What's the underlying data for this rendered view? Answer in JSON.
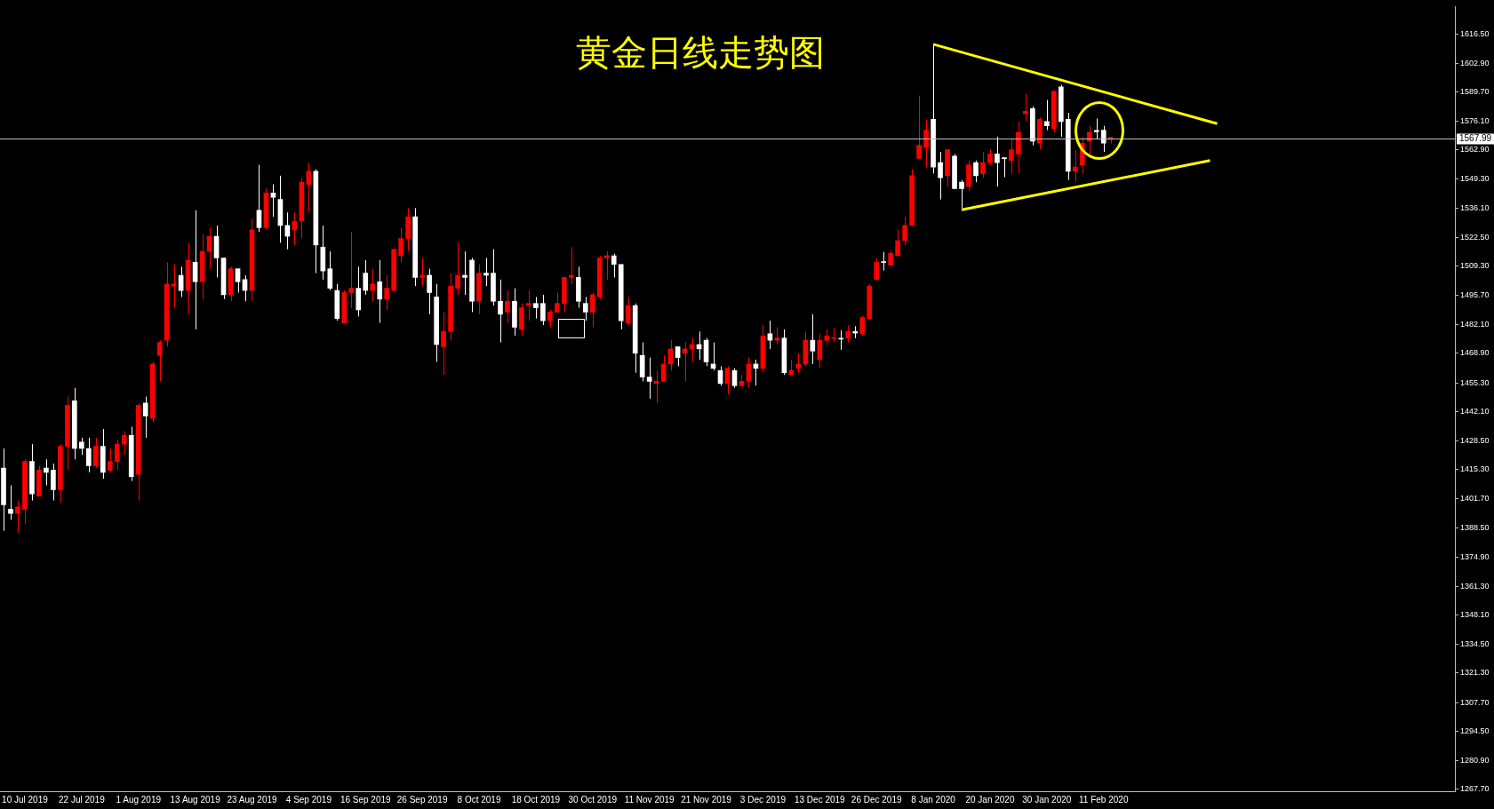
{
  "chart_data": {
    "type": "candlestick",
    "title": "黄金日线走势图",
    "categories": [
      null,
      null,
      null,
      "10 Jul 2019",
      null,
      null,
      null,
      null,
      null,
      null,
      null,
      "22 Jul 2019",
      null,
      null,
      null,
      null,
      null,
      null,
      null,
      "1 Aug 2019",
      null,
      null,
      null,
      null,
      null,
      null,
      null,
      "13 Aug 2019",
      null,
      null,
      null,
      null,
      null,
      null,
      null,
      "23 Aug 2019",
      null,
      null,
      null,
      null,
      null,
      null,
      null,
      "4 Sep 2019",
      null,
      null,
      null,
      null,
      null,
      null,
      null,
      "16 Sep 2019",
      null,
      null,
      null,
      null,
      null,
      null,
      null,
      "26 Sep 2019",
      null,
      null,
      null,
      null,
      null,
      null,
      null,
      "8 Oct 2019",
      null,
      null,
      null,
      null,
      null,
      null,
      null,
      "18 Oct 2019",
      null,
      null,
      null,
      null,
      null,
      null,
      null,
      "30 Oct 2019",
      null,
      null,
      null,
      null,
      null,
      null,
      null,
      "11 Nov 2019",
      null,
      null,
      null,
      null,
      null,
      null,
      null,
      "21 Nov 2019",
      null,
      null,
      null,
      null,
      null,
      null,
      null,
      "3 Dec 2019",
      null,
      null,
      null,
      null,
      null,
      null,
      null,
      "13 Dec 2019",
      null,
      null,
      null,
      null,
      null,
      null,
      null,
      "26 Dec 2019",
      null,
      null,
      null,
      null,
      null,
      null,
      null,
      "8 Jan 2020",
      null,
      null,
      null,
      null,
      null,
      null,
      null,
      "20 Jan 2020",
      null,
      null,
      null,
      null,
      null,
      null,
      null,
      "30 Jan 2020",
      null,
      null,
      null,
      null,
      null,
      null,
      null,
      "11 Feb 2020",
      null,
      null,
      null,
      null,
      null,
      null,
      null,
      null,
      null,
      null,
      null,
      null,
      null,
      null,
      null,
      null,
      null,
      null,
      null,
      null,
      null,
      null,
      null,
      null,
      null,
      null,
      null,
      null,
      null,
      null,
      null,
      null,
      null,
      null,
      null,
      null,
      null,
      null,
      null,
      null,
      null,
      null,
      null,
      null,
      null,
      null,
      null,
      null,
      null
    ],
    "ohlc": [
      [
        1416,
        1425,
        1387,
        1399
      ],
      [
        1397,
        1408,
        1392,
        1395
      ],
      [
        1395,
        1401,
        1386,
        1398
      ],
      [
        1397,
        1420,
        1390,
        1419
      ],
      [
        1419,
        1427,
        1401,
        1404
      ],
      [
        1403,
        1417,
        1403,
        1415
      ],
      [
        1416,
        1420,
        1408,
        1414
      ],
      [
        1415,
        1418,
        1401,
        1406
      ],
      [
        1406,
        1427,
        1400,
        1426
      ],
      [
        1426,
        1449,
        1415,
        1445
      ],
      [
        1447,
        1453,
        1420,
        1425
      ],
      [
        1428,
        1430,
        1422,
        1425
      ],
      [
        1425,
        1430,
        1414,
        1417
      ],
      [
        1417,
        1430,
        1416,
        1426
      ],
      [
        1426,
        1434,
        1411,
        1414
      ],
      [
        1415,
        1425,
        1414,
        1419
      ],
      [
        1419,
        1429,
        1415,
        1427
      ],
      [
        1427,
        1433,
        1422,
        1431
      ],
      [
        1431,
        1435,
        1410,
        1412
      ],
      [
        1413,
        1446,
        1401,
        1445
      ],
      [
        1446,
        1449,
        1430,
        1440
      ],
      [
        1439,
        1465,
        1437,
        1464
      ],
      [
        1468,
        1475,
        1456,
        1474
      ],
      [
        1475,
        1511,
        1472,
        1501
      ],
      [
        1500,
        1510,
        1490,
        1501
      ],
      [
        1505,
        1509,
        1495,
        1498
      ],
      [
        1498,
        1520,
        1487,
        1512
      ],
      [
        1511,
        1535,
        1480,
        1502
      ],
      [
        1502,
        1524,
        1494,
        1516
      ],
      [
        1516,
        1527,
        1508,
        1523
      ],
      [
        1523,
        1528,
        1504,
        1513
      ],
      [
        1513,
        1513,
        1494,
        1496
      ],
      [
        1496,
        1509,
        1493,
        1508
      ],
      [
        1508,
        1508,
        1497,
        1502
      ],
      [
        1503,
        1505,
        1493,
        1498
      ],
      [
        1498,
        1531,
        1493,
        1526
      ],
      [
        1535,
        1556,
        1525,
        1527
      ],
      [
        1527,
        1545,
        1526,
        1543
      ],
      [
        1543,
        1547,
        1532,
        1541
      ],
      [
        1540,
        1551,
        1520,
        1528
      ],
      [
        1528,
        1534,
        1517,
        1523
      ],
      [
        1526,
        1534,
        1519,
        1530
      ],
      [
        1530,
        1550,
        1522,
        1548
      ],
      [
        1547,
        1557,
        1534,
        1553
      ],
      [
        1553,
        1554,
        1506,
        1519
      ],
      [
        1518,
        1528,
        1503,
        1507
      ],
      [
        1508,
        1516,
        1498,
        1499
      ],
      [
        1498,
        1501,
        1484,
        1485
      ],
      [
        1483,
        1498,
        1483,
        1497
      ],
      [
        1497,
        1525,
        1490,
        1499
      ],
      [
        1499,
        1509,
        1486,
        1489
      ],
      [
        1506,
        1512,
        1496,
        1498
      ],
      [
        1498,
        1508,
        1493,
        1501
      ],
      [
        1502,
        1512,
        1483,
        1494
      ],
      [
        1494,
        1505,
        1489,
        1499
      ],
      [
        1498,
        1517,
        1498,
        1517
      ],
      [
        1514,
        1527,
        1511,
        1522
      ],
      [
        1522,
        1536,
        1516,
        1532
      ],
      [
        1532,
        1536,
        1500,
        1504
      ],
      [
        1504,
        1513,
        1500,
        1505
      ],
      [
        1505,
        1508,
        1487,
        1497
      ],
      [
        1495,
        1501,
        1465,
        1473
      ],
      [
        1472,
        1488,
        1459,
        1479
      ],
      [
        1479,
        1506,
        1475,
        1500
      ],
      [
        1499,
        1520,
        1496,
        1505
      ],
      [
        1505,
        1516,
        1496,
        1504
      ],
      [
        1512,
        1513,
        1488,
        1493
      ],
      [
        1493,
        1510,
        1487,
        1506
      ],
      [
        1506,
        1513,
        1500,
        1505
      ],
      [
        1506,
        1517,
        1491,
        1493
      ],
      [
        1493,
        1503,
        1474,
        1487
      ],
      [
        1488,
        1498,
        1483,
        1493
      ],
      [
        1493,
        1499,
        1477,
        1481
      ],
      [
        1480,
        1492,
        1477,
        1490
      ],
      [
        1491,
        1498,
        1484,
        1492
      ],
      [
        1492,
        1495,
        1485,
        1490
      ],
      [
        1492,
        1496,
        1482,
        1484
      ],
      [
        1484,
        1489,
        1481,
        1488
      ],
      [
        1488,
        1497,
        1488,
        1492
      ],
      [
        1492,
        1504,
        1488,
        1504
      ],
      [
        1504,
        1518,
        1501,
        1505
      ],
      [
        1504,
        1509,
        1490,
        1493
      ],
      [
        1492,
        1495,
        1484,
        1488
      ],
      [
        1488,
        1497,
        1481,
        1496
      ],
      [
        1495,
        1514,
        1494,
        1513
      ],
      [
        1513,
        1516,
        1503,
        1514
      ],
      [
        1514,
        1515,
        1504,
        1510
      ],
      [
        1510,
        1510,
        1480,
        1484
      ],
      [
        1483,
        1495,
        1482,
        1491
      ],
      [
        1491,
        1492,
        1460,
        1469
      ],
      [
        1468,
        1474,
        1456,
        1458
      ],
      [
        1458,
        1467,
        1448,
        1456
      ],
      [
        1455,
        1461,
        1446,
        1456
      ],
      [
        1456,
        1468,
        1456,
        1464
      ],
      [
        1464,
        1475,
        1461,
        1471
      ],
      [
        1472,
        1472,
        1463,
        1467
      ],
      [
        1469,
        1474,
        1456,
        1471
      ],
      [
        1471,
        1476,
        1465,
        1473
      ],
      [
        1473,
        1479,
        1466,
        1471
      ],
      [
        1475,
        1476,
        1463,
        1465
      ],
      [
        1464,
        1474,
        1461,
        1462
      ],
      [
        1461,
        1463,
        1454,
        1455
      ],
      [
        1455,
        1463,
        1450,
        1462
      ],
      [
        1461,
        1462,
        1453,
        1454
      ],
      [
        1454,
        1459,
        1454,
        1456
      ],
      [
        1456,
        1467,
        1453,
        1464
      ],
      [
        1464,
        1466,
        1454,
        1462
      ],
      [
        1462,
        1482,
        1460,
        1477
      ],
      [
        1478,
        1484,
        1471,
        1475
      ],
      [
        1475,
        1481,
        1473,
        1476
      ],
      [
        1476,
        1480,
        1459,
        1460
      ],
      [
        1459,
        1466,
        1459,
        1461
      ],
      [
        1462,
        1469,
        1460,
        1464
      ],
      [
        1464,
        1479,
        1463,
        1475
      ],
      [
        1475,
        1487,
        1464,
        1470
      ],
      [
        1466,
        1478,
        1462,
        1475
      ],
      [
        1475,
        1480,
        1473,
        1477
      ],
      [
        1475.8,
        1480.6,
        1474.3,
        1476.2
      ],
      [
        1475.8,
        1479.6,
        1470.6,
        1475.5
      ],
      [
        1476,
        1482,
        1474,
        1479
      ],
      [
        1479,
        1481.5,
        1475.9,
        1478.3
      ],
      [
        1478,
        1486.3,
        1477,
        1485.5
      ],
      [
        1485,
        1501,
        1484,
        1500
      ],
      [
        1503.1,
        1512.9,
        1502.7,
        1511.1
      ],
      [
        1511.1,
        1515.8,
        1507.2,
        1510.9
      ],
      [
        1509.7,
        1516.4,
        1509.7,
        1515.2
      ],
      [
        1514,
        1526,
        1514,
        1521
      ],
      [
        1521,
        1532,
        1519,
        1528
      ],
      [
        1528,
        1554,
        1528,
        1551
      ],
      [
        1559,
        1588,
        1559,
        1565
      ],
      [
        1564,
        1577,
        1555,
        1572
      ],
      [
        1577,
        1612,
        1552,
        1555
      ],
      [
        1557,
        1562,
        1540,
        1550
      ],
      [
        1551,
        1563,
        1546,
        1563
      ],
      [
        1560,
        1561,
        1545,
        1545
      ],
      [
        1548,
        1549,
        1536,
        1545
      ],
      [
        1546,
        1558,
        1544,
        1556
      ],
      [
        1557,
        1558,
        1548,
        1551
      ],
      [
        1552,
        1562,
        1550,
        1557
      ],
      [
        1557,
        1563,
        1556,
        1561
      ],
      [
        1561,
        1569,
        1546,
        1557
      ],
      [
        1559.1,
        1559.5,
        1550.3,
        1558.9
      ],
      [
        1558,
        1568,
        1552,
        1563
      ],
      [
        1561,
        1576,
        1552,
        1571
      ],
      [
        1579.6,
        1588.8,
        1575.9,
        1580.7
      ],
      [
        1582,
        1583,
        1565,
        1567
      ],
      [
        1566,
        1578,
        1563,
        1577
      ],
      [
        1576,
        1586,
        1572,
        1574
      ],
      [
        1572.7,
        1590.4,
        1571,
        1590
      ],
      [
        1592,
        1593,
        1569,
        1576
      ],
      [
        1577,
        1580,
        1549,
        1553
      ],
      [
        1553,
        1563,
        1548,
        1555
      ],
      [
        1556,
        1569,
        1552,
        1566
      ],
      [
        1567,
        1574,
        1560,
        1571
      ],
      [
        1571.9,
        1577.4,
        1567.8,
        1571.3
      ],
      [
        1572,
        1574,
        1562,
        1566
      ],
      [
        1567.8,
        1568.9,
        1565.8,
        1568.6
      ],
      null,
      null,
      null,
      null,
      null,
      null,
      null,
      null,
      null,
      null,
      null,
      null,
      null,
      null,
      null,
      null,
      null,
      null,
      null,
      null,
      null,
      null,
      null,
      null,
      null,
      null,
      null,
      null,
      null,
      null,
      null,
      null,
      null,
      null,
      null,
      null,
      null,
      null,
      null,
      null,
      null,
      null,
      null,
      null,
      null,
      null,
      null,
      null
    ],
    "colors": [
      "#ffffff",
      "#ffffff",
      "#ff0000",
      "#ff0000",
      "#ffffff",
      "#ff0000",
      "#ffffff",
      "#ffffff",
      "#ff0000",
      "#ff0000",
      "#ffffff",
      "#ffffff",
      "#ffffff",
      "#ff0000",
      "#ffffff",
      "#ff0000",
      "#ff0000",
      "#ff0000",
      "#ffffff",
      "#ff0000",
      "#ffffff",
      "#ff0000",
      "#ff0000",
      "#ff0000",
      "#ff0000",
      "#ffffff",
      "#ff0000",
      "#ffffff",
      "#ff0000",
      "#ff0000",
      "#ffffff",
      "#ffffff",
      "#ff0000",
      "#ffffff",
      "#ffffff",
      "#ff0000",
      "#ffffff",
      "#ff0000",
      "#ffffff",
      "#ffffff",
      "#ffffff",
      "#ff0000",
      "#ff0000",
      "#ff0000",
      "#ffffff",
      "#ffffff",
      "#ffffff",
      "#ffffff",
      "#ff0000",
      "#ff0000",
      "#ffffff",
      "#ffffff",
      "#ff0000",
      "#ffffff",
      "#ff0000",
      "#ff0000",
      "#ff0000",
      "#ff0000",
      "#ffffff",
      "#ff0000",
      "#ffffff",
      "#ffffff",
      "#ff0000",
      "#ff0000",
      "#ff0000",
      "#ffffff",
      "#ffffff",
      "#ff0000",
      "#ffffff",
      "#ffffff",
      "#ffffff",
      "#ff0000",
      "#ffffff",
      "#ff0000",
      "#ff0000",
      "#ffffff",
      "#ffffff",
      "#ff0000",
      "#ff0000",
      "#ff0000",
      "#ff0000",
      "#ffffff",
      "#ffffff",
      "#ff0000",
      "#ff0000",
      "#ff0000",
      "#ffffff",
      "#ffffff",
      "#ff0000",
      "#ffffff",
      "#ffffff",
      "#ffffff",
      "#ff0000",
      "#ff0000",
      "#ff0000",
      "#ffffff",
      "#ff0000",
      "#ff0000",
      "#ffffff",
      "#ffffff",
      "#ffffff",
      "#ffffff",
      "#ff0000",
      "#ffffff",
      "#ff0000",
      "#ff0000",
      "#ffffff",
      "#ff0000",
      "#ffffff",
      "#ff0000",
      "#ffffff",
      "#ff0000",
      "#ff0000",
      "#ff0000",
      "#ffffff",
      "#ff0000",
      "#ff0000",
      "#ff0000",
      "#ffffff",
      "#ff0000",
      "#ffffff",
      "#ff0000",
      "#ff0000",
      "#ff0000",
      "#ffffff",
      "#ff0000",
      "#ff0000",
      "#ff0000",
      "#ff0000",
      "#ff0000",
      "#ff0000",
      "#ffffff",
      "#ffffff",
      "#ff0000",
      "#ffffff",
      "#ffffff",
      "#ff0000",
      "#ffffff",
      "#ff0000",
      "#ff0000",
      "#ffffff",
      "#ffffff",
      "#ff0000",
      "#ff0000",
      "#ff0000",
      "#ffffff",
      "#ff0000",
      "#ffffff",
      "#ff0000",
      "#ffffff",
      "#ffffff",
      "#ff0000",
      "#ff0000",
      "#ff0000",
      "#ffffff",
      "#ffffff",
      "#ff0000",
      null,
      null,
      null,
      null,
      null,
      null,
      null,
      null,
      null,
      null,
      null,
      null,
      null,
      null,
      null,
      null,
      null,
      null,
      null,
      null,
      null,
      null,
      null,
      null,
      null,
      null,
      null,
      null,
      null,
      null,
      null,
      null,
      null,
      null,
      null,
      null,
      null,
      null,
      null,
      null,
      null,
      null,
      null,
      null,
      null,
      null,
      null,
      null
    ],
    "series": [
      {
        "type": "line",
        "color": "#ffff00",
        "values": [
          null,
          null,
          null,
          null,
          null,
          null,
          null,
          null,
          null,
          null,
          null,
          null,
          null,
          null,
          null,
          null,
          null,
          null,
          null,
          null,
          null,
          null,
          null,
          null,
          null,
          null,
          null,
          null,
          null,
          null,
          null,
          null,
          null,
          null,
          null,
          null,
          null,
          null,
          null,
          null,
          null,
          null,
          null,
          null,
          null,
          null,
          null,
          null,
          null,
          null,
          null,
          null,
          null,
          null,
          null,
          null,
          null,
          null,
          null,
          null,
          null,
          null,
          null,
          null,
          null,
          null,
          null,
          null,
          null,
          null,
          null,
          null,
          null,
          null,
          null,
          null,
          null,
          null,
          null,
          null,
          null,
          null,
          null,
          null,
          null,
          null,
          null,
          null,
          null,
          null,
          null,
          null,
          null,
          null,
          null,
          null,
          null,
          null,
          null,
          null,
          null,
          null,
          null,
          null,
          null,
          null,
          null,
          null,
          null,
          null,
          null,
          null,
          null,
          null,
          null,
          null,
          null,
          null,
          null,
          null,
          null,
          null,
          null,
          null,
          null,
          null,
          null,
          null,
          null,
          null,
          null,
          1611.7,
          null,
          null,
          null,
          null,
          null,
          null,
          null,
          null,
          null,
          null,
          null,
          null,
          null,
          null,
          null,
          null,
          null,
          null,
          null,
          null,
          null,
          null,
          null,
          null,
          null,
          null,
          null,
          null,
          null,
          null,
          null,
          null,
          null,
          null,
          null,
          null,
          null,
          null,
          null,
          1575,
          null,
          null,
          null,
          null,
          null,
          null,
          null,
          null,
          null,
          null,
          null,
          null,
          null,
          null,
          null,
          null,
          null,
          null,
          null,
          null,
          null,
          null,
          null,
          null,
          null,
          null,
          null,
          null,
          null,
          null,
          null,
          null,
          null
        ]
      },
      {
        "type": "line",
        "color": "#ffff00",
        "values": [
          null,
          null,
          null,
          null,
          null,
          null,
          null,
          null,
          null,
          null,
          null,
          null,
          null,
          null,
          null,
          null,
          null,
          null,
          null,
          null,
          null,
          null,
          null,
          null,
          null,
          null,
          null,
          null,
          null,
          null,
          null,
          null,
          null,
          null,
          null,
          null,
          null,
          null,
          null,
          null,
          null,
          null,
          null,
          null,
          null,
          null,
          null,
          null,
          null,
          null,
          null,
          null,
          null,
          null,
          null,
          null,
          null,
          null,
          null,
          null,
          null,
          null,
          null,
          null,
          null,
          null,
          null,
          null,
          null,
          null,
          null,
          null,
          null,
          null,
          null,
          null,
          null,
          null,
          null,
          null,
          null,
          null,
          null,
          null,
          null,
          null,
          null,
          null,
          null,
          null,
          null,
          null,
          null,
          null,
          null,
          null,
          null,
          null,
          null,
          null,
          null,
          null,
          null,
          null,
          null,
          null,
          null,
          null,
          null,
          null,
          null,
          null,
          null,
          null,
          null,
          null,
          null,
          null,
          null,
          null,
          null,
          null,
          null,
          null,
          null,
          null,
          null,
          null,
          null,
          null,
          null,
          null,
          null,
          null,
          null,
          1535.2,
          null,
          null,
          null,
          null,
          null,
          null,
          null,
          null,
          null,
          null,
          null,
          null,
          null,
          null,
          null,
          null,
          null,
          null,
          null,
          null,
          null,
          null,
          null,
          null,
          null,
          null,
          null,
          null,
          null,
          null,
          null,
          null,
          null,
          null,
          1558,
          null,
          null,
          null,
          null,
          null,
          null,
          null,
          null,
          null,
          null,
          null,
          null,
          null,
          null,
          null,
          null,
          null,
          null,
          null,
          null,
          null,
          null,
          null,
          null,
          null,
          null,
          null,
          null,
          null,
          null,
          null,
          null,
          null,
          null
        ]
      }
    ],
    "ylim": [
      1266.7,
      1629.1
    ],
    "yticks": [
      {
        "value": 1616.5,
        "label": "1616.50"
      },
      {
        "value": 1602.9,
        "label": "1602.90"
      },
      {
        "value": 1589.7,
        "label": "1589.70"
      },
      {
        "value": 1576.1,
        "label": "1576.10"
      },
      {
        "value": 1562.9,
        "label": "1562.90"
      },
      {
        "value": 1549.3,
        "label": "1549.30"
      },
      {
        "value": 1536.1,
        "label": "1536.10"
      },
      {
        "value": 1522.5,
        "label": "1522.50"
      },
      {
        "value": 1509.3,
        "label": "1509.30"
      },
      {
        "value": 1495.7,
        "label": "1495.70"
      },
      {
        "value": 1482.1,
        "label": "1482.10"
      },
      {
        "value": 1468.9,
        "label": "1468.90"
      },
      {
        "value": 1455.3,
        "label": "1455.30"
      },
      {
        "value": 1442.1,
        "label": "1442.10"
      },
      {
        "value": 1428.5,
        "label": "1428.50"
      },
      {
        "value": 1415.3,
        "label": "1415.30"
      },
      {
        "value": 1401.7,
        "label": "1401.70"
      },
      {
        "value": 1388.5,
        "label": "1388.50"
      },
      {
        "value": 1374.9,
        "label": "1374.90"
      },
      {
        "value": 1361.3,
        "label": "1361.30"
      },
      {
        "value": 1348.1,
        "label": "1348.10"
      },
      {
        "value": 1334.5,
        "label": "1334.50"
      },
      {
        "value": 1321.3,
        "label": "1321.30"
      },
      {
        "value": 1307.7,
        "label": "1307.70"
      },
      {
        "value": 1294.5,
        "label": "1294.50"
      },
      {
        "value": 1280.9,
        "label": "1280.90"
      },
      {
        "value": 1267.7,
        "label": "1267.70"
      }
    ],
    "ref_lines": [
      {
        "axis": "y",
        "value": 1567.99,
        "label": "1567.99",
        "color": "#c0c0c0"
      }
    ],
    "grid": false,
    "legend": false
  }
}
